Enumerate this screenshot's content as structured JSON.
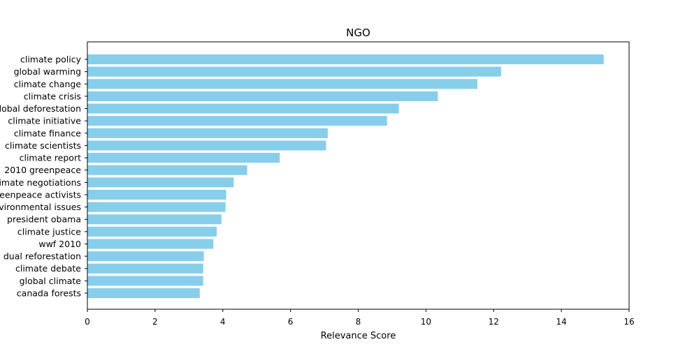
{
  "chart_data": {
    "type": "bar",
    "orientation": "horizontal",
    "title": "NGO",
    "xlabel": "Relevance Score",
    "ylabel": "",
    "xlim": [
      0,
      16
    ],
    "xticks": [
      0,
      2,
      4,
      6,
      8,
      10,
      12,
      14,
      16
    ],
    "bar_color": "#87CEEB",
    "grid": false,
    "categories": [
      "climate policy",
      "global warming",
      "climate change",
      "climate crisis",
      "global deforestation",
      "climate initiative",
      "climate finance",
      "climate scientists",
      "climate report",
      "2010 greenpeace",
      "climate negotiations",
      "greenpeace activists",
      "environmental issues",
      "president obama",
      "climate justice",
      "wwf 2010",
      "dual reforestation",
      "climate debate",
      "global climate",
      "canada forests"
    ],
    "values": [
      15.25,
      12.22,
      11.52,
      10.35,
      9.2,
      8.85,
      7.1,
      7.05,
      5.68,
      4.72,
      4.32,
      4.1,
      4.08,
      3.96,
      3.82,
      3.72,
      3.44,
      3.42,
      3.42,
      3.32
    ]
  }
}
